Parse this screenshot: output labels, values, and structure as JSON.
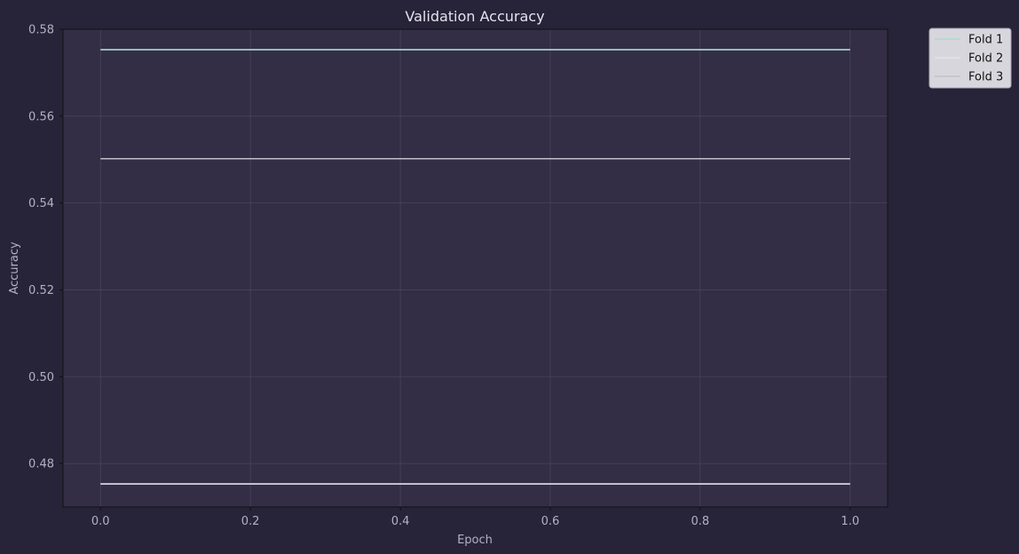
{
  "chart_data": {
    "type": "line",
    "title": "Validation Accuracy",
    "xlabel": "Epoch",
    "ylabel": "Accuracy",
    "xlim": [
      -0.05,
      1.05
    ],
    "ylim": [
      0.47,
      0.58
    ],
    "x_ticks": [
      0.0,
      0.2,
      0.4,
      0.6,
      0.8,
      1.0
    ],
    "x_tick_labels": [
      "0.0",
      "0.2",
      "0.4",
      "0.6",
      "0.8",
      "1.0"
    ],
    "y_ticks": [
      0.48,
      0.5,
      0.52,
      0.54,
      0.56,
      0.58
    ],
    "y_tick_labels": [
      "0.48",
      "0.50",
      "0.52",
      "0.54",
      "0.56",
      "0.58"
    ],
    "grid": true,
    "legend_position": "outside-top-right",
    "x": [
      0,
      1
    ],
    "series": [
      {
        "name": "Fold 1",
        "values": [
          0.5753,
          0.5753
        ],
        "color": "#a8dccf"
      },
      {
        "name": "Fold 2",
        "values": [
          0.4753,
          0.4753
        ],
        "color": "#e4e2ec"
      },
      {
        "name": "Fold 3",
        "values": [
          0.5502,
          0.5502
        ],
        "color": "#c2bfcb"
      }
    ],
    "colors": {
      "background": "#272338",
      "plot_background": "#332e45",
      "grid": "#48435a",
      "axis": "#111111",
      "legend_background": "#d8d6dd"
    }
  }
}
